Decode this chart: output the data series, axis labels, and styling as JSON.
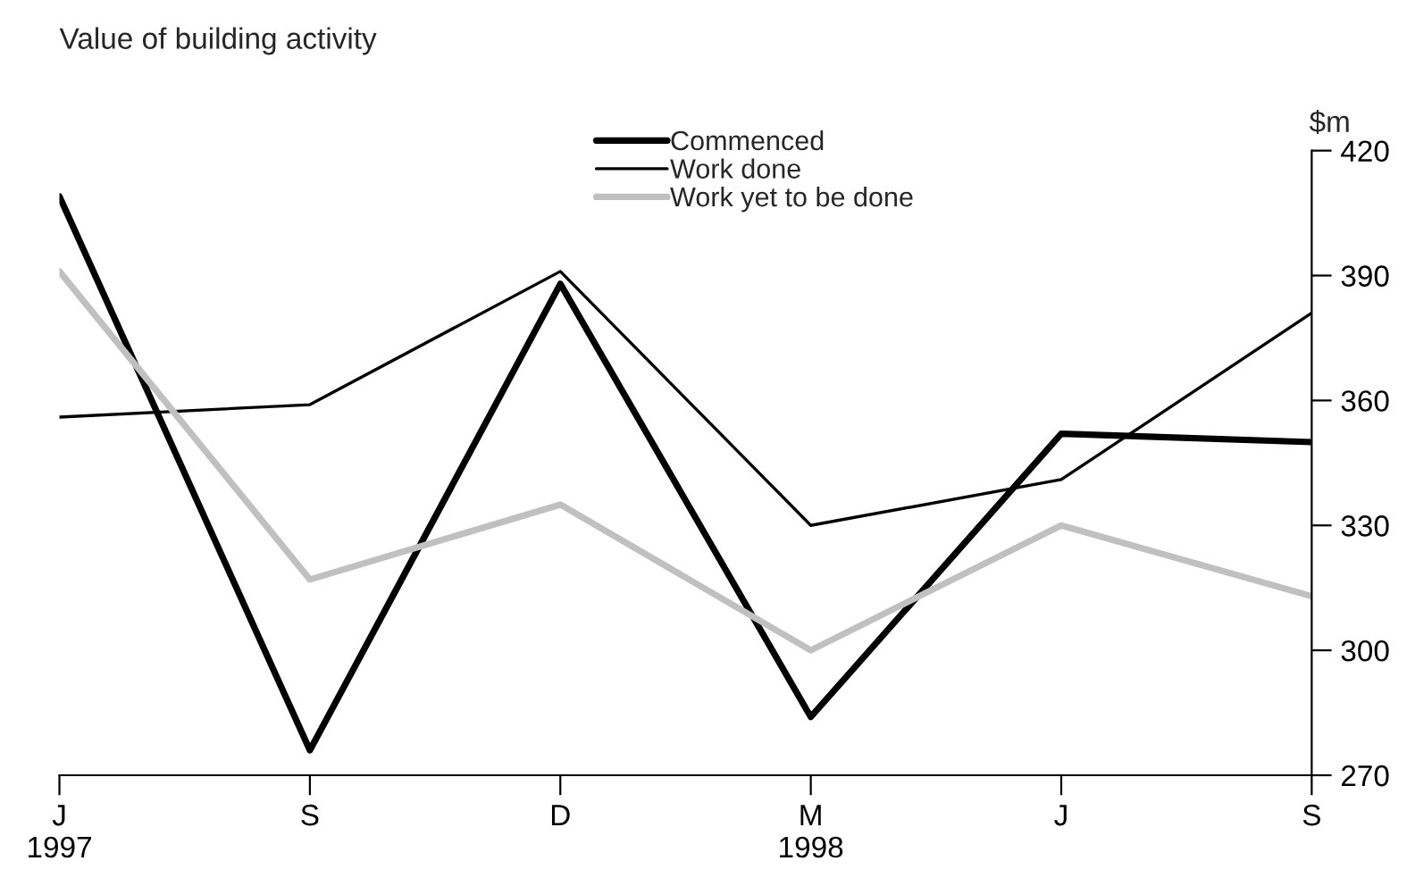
{
  "chart_data": {
    "type": "line",
    "title": "Value of building activity",
    "ylabel": "$m",
    "categories": [
      "J\n1997",
      "S",
      "D",
      "M\n1998",
      "J",
      "S"
    ],
    "series": [
      {
        "name": "Commenced",
        "color": "#000000",
        "values": [
          409,
          276,
          388,
          284,
          352,
          350
        ]
      },
      {
        "name": "Work done",
        "color": "#000000",
        "values": [
          356,
          359,
          391,
          330,
          341,
          381
        ]
      },
      {
        "name": "Work yet to be done",
        "color": "#c0c0c0",
        "values": [
          391,
          317,
          335,
          300,
          330,
          313
        ]
      }
    ],
    "ylim": [
      270,
      420
    ],
    "yticks": [
      270,
      300,
      330,
      360,
      390,
      420
    ],
    "grid": false,
    "legend": "top",
    "marker": "none",
    "line_style": "solid"
  }
}
